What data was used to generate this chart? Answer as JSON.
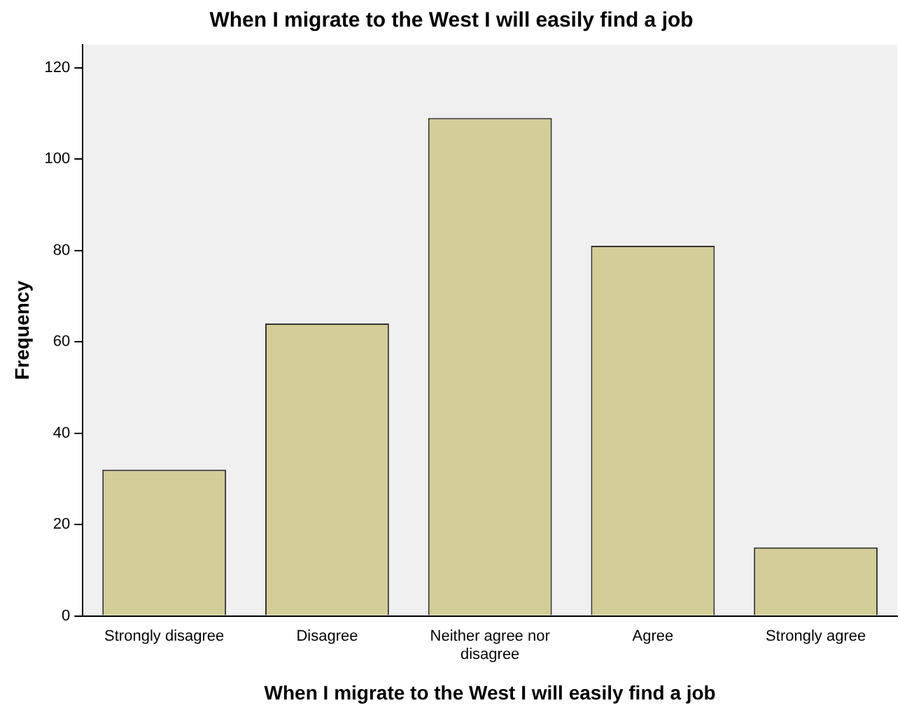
{
  "chart_data": {
    "type": "bar",
    "title": "When I migrate to the West I will easily find a job",
    "xlabel": "When I migrate to the West I will easily find a job",
    "ylabel": "Frequency",
    "categories": [
      "Strongly disagree",
      "Disagree",
      "Neither agree nor disagree",
      "Agree",
      "Strongly agree"
    ],
    "values": [
      32,
      64,
      109,
      81,
      15
    ],
    "color": "#d3ce97",
    "ylim": [
      0,
      125
    ],
    "yticks": [
      0,
      20,
      40,
      60,
      80,
      100,
      120
    ],
    "grid": false,
    "legend": false
  }
}
